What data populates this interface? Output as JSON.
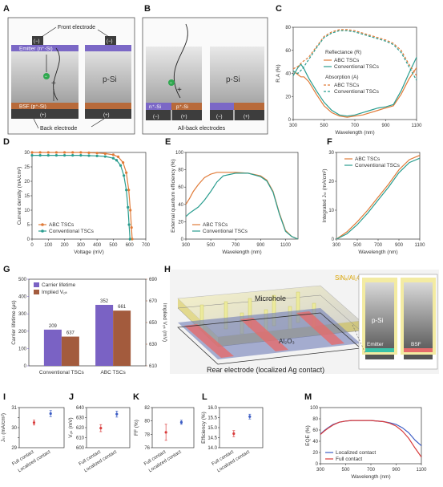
{
  "colors": {
    "abc": "#e07b39",
    "conv": "#2a9d8f",
    "purple": "#7a62c4",
    "brown": "#a35b3d",
    "blue": "#3b5cc4",
    "red": "#d93c3c",
    "si": "#c9c9c9",
    "emitter": "#7b68c6",
    "bsf": "#b86a3a"
  },
  "panels": {
    "A": {
      "label": "A",
      "front_electrode": "Front electrode",
      "emitter": "Emitter (n⁺-Si)",
      "bulk": "p-Si",
      "bsf": "BSF (p⁺-Si)",
      "back_electrode": "Back electrode",
      "minus": "(−)",
      "plus": "(+)"
    },
    "B": {
      "label": "B",
      "bulk": "p-Si",
      "n_si": "n⁺-Si",
      "p_si": "p⁺-Si",
      "all_back": "All-back electrodes",
      "minus": "(−)",
      "plus": "(+)"
    },
    "H": {
      "label": "H",
      "microhole": "Microhole",
      "passivation": "SiNₓ/Al₂O₃",
      "al2o3": "Al₂O₃",
      "rear": "Rear electrode (localized Ag contact)",
      "bulk": "p-Si",
      "emitter": "Emitter",
      "bsf": "BSF"
    }
  },
  "chart_data": [
    {
      "id": "C",
      "type": "line",
      "title": "",
      "xlabel": "Wavelength (nm)",
      "ylabel": "R,A (%)",
      "xlim": [
        300,
        1100
      ],
      "ylim": [
        0,
        80
      ],
      "xticks": [
        300,
        500,
        700,
        900,
        1100
      ],
      "yticks": [
        0,
        20,
        40,
        60,
        80
      ],
      "legend_groups": [
        "Reflectance (R)",
        "Absorption (A)"
      ],
      "series": [
        {
          "name": "ABC TSCs",
          "group": "Reflectance (R)",
          "style": "solid",
          "color": "#e07b39",
          "x": [
            300,
            330,
            350,
            370,
            400,
            450,
            500,
            550,
            600,
            650,
            700,
            750,
            800,
            850,
            900,
            950,
            1000,
            1050,
            1100
          ],
          "y": [
            42,
            39,
            37,
            37,
            33,
            22,
            12,
            6,
            3,
            2,
            3,
            4,
            6,
            8,
            10,
            12,
            22,
            35,
            45
          ]
        },
        {
          "name": "Conventional TSCs",
          "group": "Reflectance (R)",
          "style": "solid",
          "color": "#2a9d8f",
          "x": [
            300,
            330,
            350,
            370,
            400,
            450,
            500,
            550,
            600,
            650,
            700,
            750,
            800,
            850,
            900,
            950,
            1000,
            1050,
            1100
          ],
          "y": [
            38,
            45,
            48,
            44,
            36,
            25,
            15,
            8,
            4,
            3,
            4,
            6,
            8,
            10,
            11,
            13,
            25,
            40,
            54
          ]
        },
        {
          "name": "ABC TSCs",
          "group": "Absorption (A)",
          "style": "dashed",
          "color": "#e07b39",
          "x": [
            300,
            330,
            360,
            400,
            450,
            500,
            550,
            600,
            650,
            700,
            750,
            800,
            850,
            900,
            950,
            1000,
            1050,
            1100
          ],
          "y": [
            44,
            46,
            50,
            54,
            63,
            72,
            76,
            78,
            78,
            77,
            75,
            73,
            71,
            69,
            66,
            60,
            48,
            38
          ]
        },
        {
          "name": "Conventional TSCs",
          "group": "Absorption (A)",
          "style": "dashed",
          "color": "#2a9d8f",
          "x": [
            300,
            330,
            360,
            400,
            450,
            500,
            550,
            600,
            650,
            700,
            750,
            800,
            850,
            900,
            950,
            1000,
            1050,
            1100
          ],
          "y": [
            42,
            40,
            44,
            52,
            62,
            71,
            75,
            77,
            77,
            76,
            74,
            72,
            70,
            68,
            65,
            58,
            46,
            34
          ]
        }
      ]
    },
    {
      "id": "D",
      "type": "line",
      "title": "",
      "xlabel": "Voltage (mV)",
      "ylabel": "Current density (mA/cm²)",
      "xlim": [
        0,
        700
      ],
      "ylim": [
        0,
        30
      ],
      "xticks": [
        0,
        100,
        200,
        300,
        400,
        500,
        600,
        700
      ],
      "yticks": [
        0,
        5,
        10,
        15,
        20,
        25,
        30
      ],
      "series": [
        {
          "name": "ABC TSCs",
          "color": "#e07b39",
          "x": [
            0,
            50,
            100,
            150,
            200,
            250,
            300,
            350,
            400,
            450,
            500,
            530,
            560,
            580,
            595,
            605,
            612,
            616
          ],
          "y": [
            30,
            30,
            30,
            30,
            30,
            30,
            30,
            29.9,
            29.8,
            29.6,
            29.2,
            28.5,
            26.5,
            23,
            17,
            10,
            4,
            0
          ]
        },
        {
          "name": "Conventional TSCs",
          "color": "#2a9d8f",
          "x": [
            0,
            50,
            100,
            150,
            200,
            250,
            300,
            350,
            400,
            450,
            500,
            520,
            545,
            565,
            580,
            590,
            597,
            603
          ],
          "y": [
            29,
            29,
            29,
            29,
            29,
            29,
            29,
            28.9,
            28.8,
            28.6,
            28,
            27.3,
            25.5,
            22,
            17,
            11,
            5,
            0
          ]
        }
      ]
    },
    {
      "id": "E",
      "type": "line",
      "title": "",
      "xlabel": "Wavelength (nm)",
      "ylabel": "External quantum efficiency (%)",
      "xlim": [
        300,
        1200
      ],
      "ylim": [
        0,
        100
      ],
      "xticks": [
        300,
        500,
        700,
        900,
        1100
      ],
      "yticks": [
        0,
        20,
        40,
        60,
        80,
        100
      ],
      "series": [
        {
          "name": "ABC TSCs",
          "color": "#e07b39",
          "x": [
            300,
            330,
            360,
            400,
            450,
            500,
            550,
            600,
            700,
            800,
            900,
            950,
            1000,
            1050,
            1100,
            1150,
            1200
          ],
          "y": [
            40,
            47,
            55,
            63,
            71,
            75,
            77,
            77,
            77,
            76,
            73,
            68,
            55,
            30,
            10,
            3,
            0
          ]
        },
        {
          "name": "Conventional TSCs",
          "color": "#2a9d8f",
          "x": [
            300,
            330,
            360,
            400,
            450,
            500,
            550,
            600,
            700,
            800,
            900,
            950,
            1000,
            1050,
            1100,
            1150,
            1200
          ],
          "y": [
            26,
            30,
            33,
            37,
            45,
            55,
            66,
            73,
            76,
            76,
            72,
            67,
            54,
            29,
            9,
            3,
            0
          ]
        }
      ]
    },
    {
      "id": "F",
      "type": "line",
      "title": "",
      "xlabel": "Wavelength (nm)",
      "ylabel": "Integrated Jₛₜ (mA/cm²)",
      "xlim": [
        300,
        1100
      ],
      "ylim": [
        0,
        30
      ],
      "xticks": [
        300,
        500,
        700,
        900,
        1100
      ],
      "yticks": [
        0,
        10,
        20,
        30
      ],
      "series": [
        {
          "name": "ABC TSCs",
          "color": "#e07b39",
          "x": [
            300,
            400,
            500,
            600,
            700,
            800,
            900,
            1000,
            1100
          ],
          "y": [
            0,
            2.5,
            6,
            10,
            14.5,
            19,
            24,
            27.5,
            29
          ]
        },
        {
          "name": "Conventional TSCs",
          "color": "#2a9d8f",
          "x": [
            300,
            400,
            500,
            600,
            700,
            800,
            900,
            1000,
            1100
          ],
          "y": [
            0,
            1.8,
            5,
            9,
            13.5,
            18,
            23,
            26.5,
            28
          ]
        }
      ]
    },
    {
      "id": "G",
      "type": "bar",
      "title": "",
      "categories": [
        "Conventional TSCs",
        "ABC TSCs"
      ],
      "ylabel": "Carrier lifetime (μs)",
      "y2label": "Implied Vₒₖ (mV)",
      "ylim": [
        0,
        500
      ],
      "y2lim": [
        610,
        690
      ],
      "yticks": [
        0,
        100,
        200,
        300,
        400,
        500
      ],
      "y2ticks": [
        610,
        630,
        650,
        670,
        690
      ],
      "series": [
        {
          "name": "Carrier lifetime",
          "axis": "left",
          "color": "#7a62c4",
          "values": [
            209,
            352
          ],
          "labels": [
            "209",
            "352"
          ]
        },
        {
          "name": "Implied Vₒₖ",
          "axis": "right",
          "color": "#a35b3d",
          "values": [
            637,
            661
          ],
          "labels": [
            "637",
            "661"
          ]
        }
      ]
    },
    {
      "id": "I",
      "type": "scatter",
      "title": "",
      "ylabel": "Jₛₜ (mA/cm²)",
      "categories": [
        "Full contact",
        "Localized contact"
      ],
      "ylim": [
        29,
        31
      ],
      "yticks": [
        29,
        29.5,
        30,
        30.5,
        31
      ],
      "ytick_labels": [
        "29",
        "",
        "30",
        "",
        "31"
      ],
      "points": [
        {
          "value": 30.25,
          "err": 0.12,
          "color": "#d93c3c"
        },
        {
          "value": 30.7,
          "err": 0.15,
          "color": "#3b5cc4"
        }
      ]
    },
    {
      "id": "J",
      "type": "scatter",
      "title": "",
      "ylabel": "Vₒₖ (mV)",
      "categories": [
        "Full contact",
        "Localized contact"
      ],
      "ylim": [
        600,
        640
      ],
      "yticks": [
        600,
        610,
        620,
        630,
        640
      ],
      "points": [
        {
          "value": 619.5,
          "err": 3.5,
          "color": "#d93c3c"
        },
        {
          "value": 633.5,
          "err": 3,
          "color": "#3b5cc4"
        }
      ]
    },
    {
      "id": "K",
      "type": "scatter",
      "title": "",
      "ylabel": "FF (%)",
      "categories": [
        "Full contact",
        "Localized contact"
      ],
      "ylim": [
        76,
        82
      ],
      "yticks": [
        76,
        78,
        80,
        82
      ],
      "points": [
        {
          "value": 78.3,
          "err": 1.2,
          "color": "#d93c3c"
        },
        {
          "value": 79.8,
          "err": 0.3,
          "color": "#3b5cc4"
        }
      ]
    },
    {
      "id": "L",
      "type": "scatter",
      "title": "",
      "ylabel": "Efficiency (%)",
      "categories": [
        "Full contact",
        "Localized contact"
      ],
      "ylim": [
        14,
        16
      ],
      "yticks": [
        14,
        14.5,
        15,
        15.5,
        16
      ],
      "ytick_labels": [
        "14.0",
        "14.5",
        "15.0",
        "15.5",
        "16.0"
      ],
      "points": [
        {
          "value": 14.7,
          "err": 0.15,
          "color": "#d93c3c"
        },
        {
          "value": 15.55,
          "err": 0.12,
          "color": "#3b5cc4"
        }
      ]
    },
    {
      "id": "M",
      "type": "line",
      "title": "",
      "xlabel": "Wavelength (nm)",
      "ylabel": "EQE (%)",
      "xlim": [
        300,
        1100
      ],
      "ylim": [
        0,
        100
      ],
      "xticks": [
        300,
        500,
        700,
        900,
        1100
      ],
      "yticks": [
        0,
        20,
        40,
        60,
        80,
        100
      ],
      "series": [
        {
          "name": "Localized contact",
          "color": "#3b5cc4",
          "x": [
            300,
            330,
            360,
            400,
            450,
            500,
            550,
            600,
            700,
            800,
            850,
            900,
            950,
            1000,
            1050,
            1100
          ],
          "y": [
            53,
            59,
            64,
            70,
            74,
            76,
            77,
            77,
            77,
            75,
            73,
            70,
            64,
            55,
            42,
            32
          ]
        },
        {
          "name": "Full contact",
          "color": "#d93c3c",
          "x": [
            300,
            330,
            360,
            400,
            450,
            500,
            550,
            600,
            700,
            800,
            850,
            900,
            950,
            1000,
            1050,
            1100
          ],
          "y": [
            52,
            58,
            63,
            69,
            74,
            76,
            77,
            77,
            77,
            75,
            72,
            67,
            58,
            45,
            28,
            12
          ]
        }
      ]
    }
  ]
}
